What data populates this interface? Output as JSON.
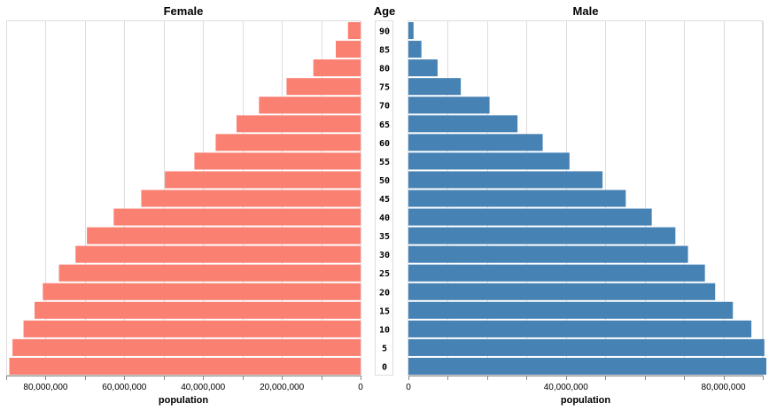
{
  "chart_data": {
    "type": "bar",
    "left_title": "Female",
    "center_title": "Age",
    "right_title": "Male",
    "xlabel": "population",
    "categories": [
      "90",
      "85",
      "80",
      "75",
      "70",
      "65",
      "60",
      "55",
      "50",
      "45",
      "40",
      "35",
      "30",
      "25",
      "20",
      "15",
      "10",
      "5",
      "0"
    ],
    "series": [
      {
        "name": "Female",
        "color": "#fa8072",
        "values": [
          3200000,
          6300000,
          12000000,
          18800000,
          25800000,
          31500000,
          36800000,
          42200000,
          49700000,
          55700000,
          62700000,
          69500000,
          72400000,
          76600000,
          80700000,
          82800000,
          85600000,
          88400000,
          89200000
        ]
      },
      {
        "name": "Male",
        "color": "#4682b4",
        "values": [
          1300000,
          3300000,
          7400000,
          13300000,
          20600000,
          27700000,
          34100000,
          40900000,
          49300000,
          55200000,
          61800000,
          67800000,
          71000000,
          75300000,
          77900000,
          82400000,
          87100000,
          90400000,
          90900000
        ]
      },
      {
        "name": "Age",
        "color": "#ffffff",
        "values": [
          1,
          1,
          1,
          1,
          1,
          1,
          1,
          1,
          1,
          1,
          1,
          1,
          1,
          1,
          1,
          1,
          1,
          1,
          1
        ]
      }
    ],
    "female_ticks": [
      "80,000,000",
      "60,000,000",
      "40,000,000",
      "20,000,000",
      "0"
    ],
    "male_ticks": [
      "0",
      "40,000,000",
      "80,000,000"
    ],
    "xlim": [
      0,
      90000000
    ],
    "grid": true,
    "legend": "none"
  }
}
